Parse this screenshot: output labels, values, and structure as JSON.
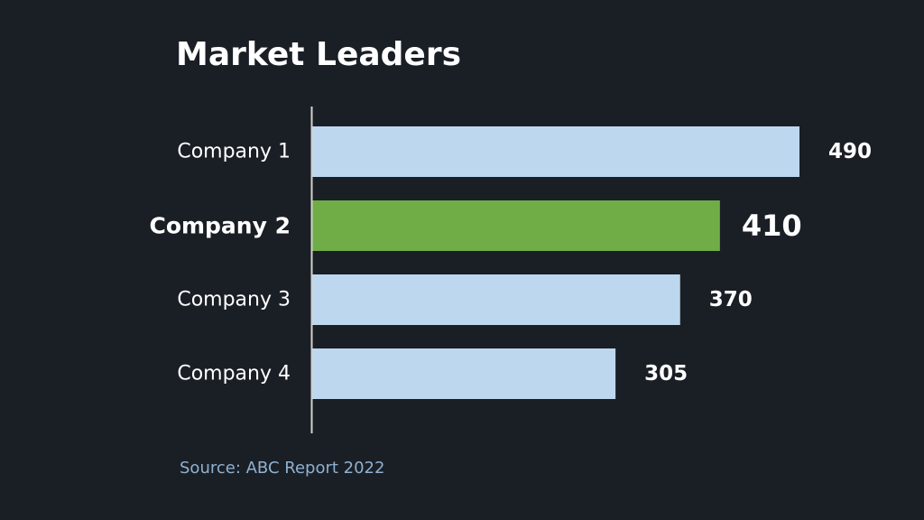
{
  "chart_data": {
    "type": "bar",
    "orientation": "horizontal",
    "title": "Market Leaders",
    "categories": [
      "Company 1",
      "Company 2",
      "Company 3",
      "Company 4"
    ],
    "values": [
      490,
      410,
      370,
      305
    ],
    "value_labels": [
      "490",
      "410",
      "370",
      "305"
    ],
    "highlight_index": 1,
    "xlim": [
      0,
      490
    ],
    "grid": false,
    "colors": {
      "bar": "#bdd7ee",
      "highlight": "#70ad47",
      "axis": "#d0d0d0",
      "text": "#ffffff"
    },
    "source": "Source: ABC Report 2022"
  }
}
